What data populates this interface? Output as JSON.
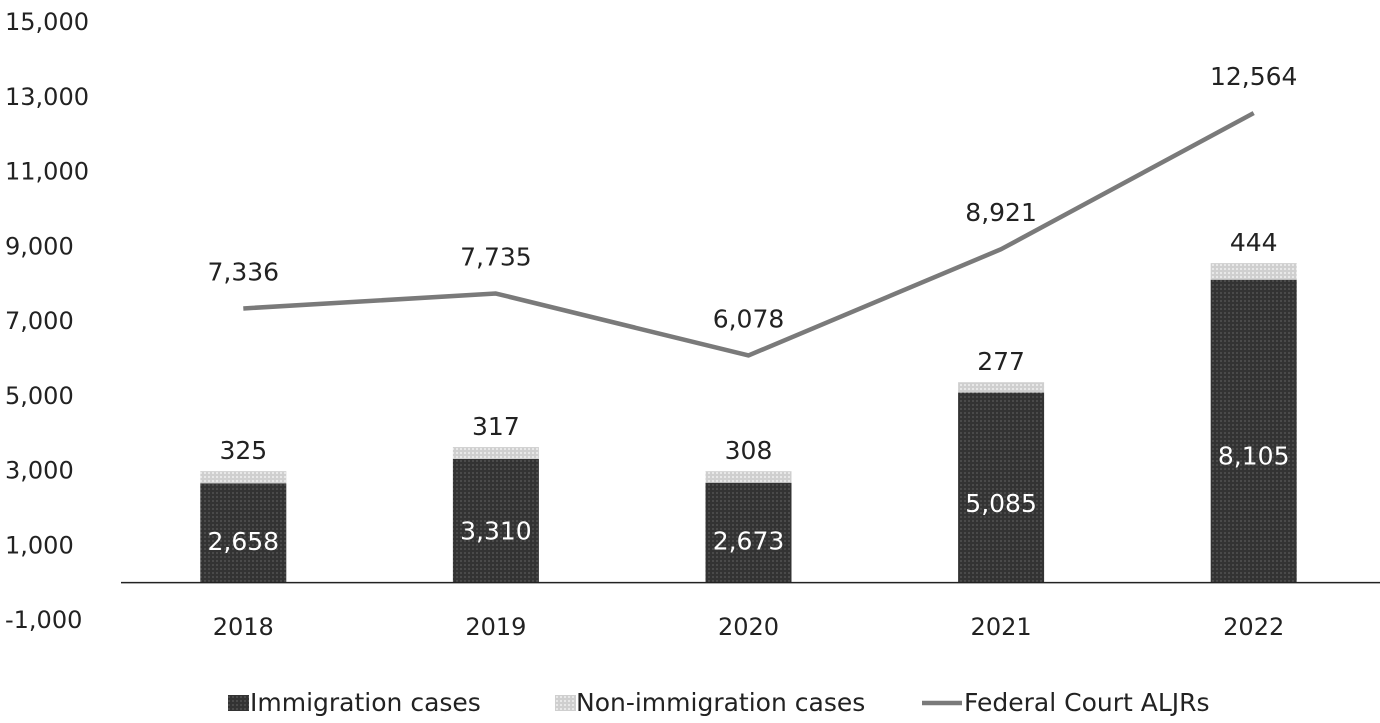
{
  "chart_data": {
    "type": "bar",
    "stacked": true,
    "categories": [
      "2018",
      "2019",
      "2020",
      "2021",
      "2022"
    ],
    "series": [
      {
        "name": "Immigration cases",
        "type": "bar",
        "values": [
          2658,
          3310,
          2673,
          5085,
          8105
        ],
        "labels": [
          "2,658",
          "3,310",
          "2,673",
          "5,085",
          "8,105"
        ],
        "color": "#3a3a3a"
      },
      {
        "name": "Non-immigration cases",
        "type": "bar",
        "values": [
          325,
          317,
          308,
          277,
          444
        ],
        "labels": [
          "325",
          "317",
          "308",
          "277",
          "444"
        ],
        "color": "#d6d6d6"
      },
      {
        "name": "Federal Court ALJRs",
        "type": "line",
        "values": [
          7336,
          7735,
          6078,
          8921,
          12564
        ],
        "labels": [
          "7,336",
          "7,735",
          "6,078",
          "8,921",
          "12,564"
        ],
        "color": "#7a7a7a"
      }
    ],
    "y_ticks": [
      "15,000",
      "13,000",
      "11,000",
      "9,000",
      "7,000",
      "5,000",
      "3,000",
      "1,000",
      "-1,000"
    ],
    "ylim": [
      -1000,
      15000
    ],
    "grid": false,
    "legend": "bottom"
  }
}
